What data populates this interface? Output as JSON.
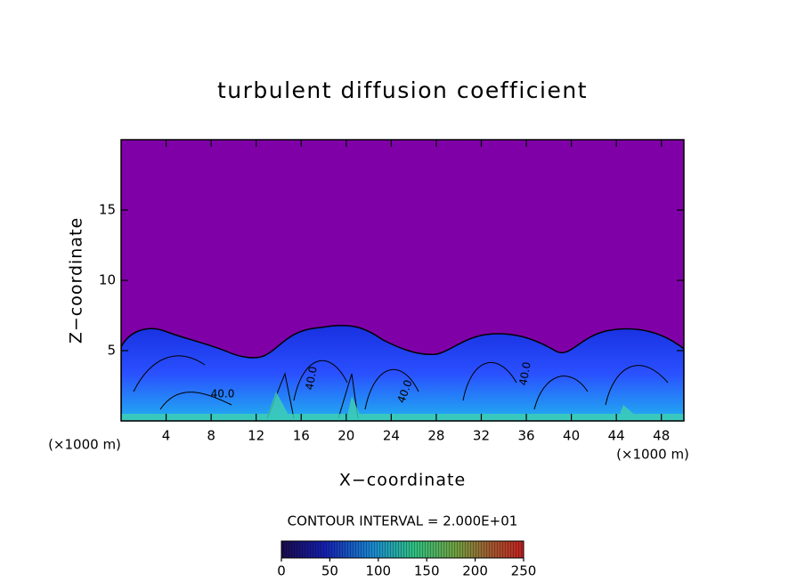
{
  "chart_data": {
    "type": "contour",
    "title": "turbulent diffusion coefficient",
    "x_label": "X−coordinate",
    "y_label": "Z−coordinate",
    "x_unit_left": "(×1000 m)",
    "x_unit_right": "(×1000 m)",
    "contour_interval_text": "CONTOUR INTERVAL = 2.000E+01",
    "xlim": [
      0,
      50
    ],
    "xticks": [
      4,
      8,
      12,
      16,
      20,
      24,
      28,
      32,
      36,
      40,
      44,
      48
    ],
    "ylim": [
      0,
      20
    ],
    "yticks": [
      5,
      10,
      15
    ],
    "background_color": "#8000a8",
    "contour_labels": [
      "40.0",
      "40.0",
      "40.0",
      "40.0"
    ],
    "colorbar": {
      "range": [
        0,
        250
      ],
      "ticks": [
        0,
        50,
        100,
        150,
        200,
        250
      ]
    }
  }
}
